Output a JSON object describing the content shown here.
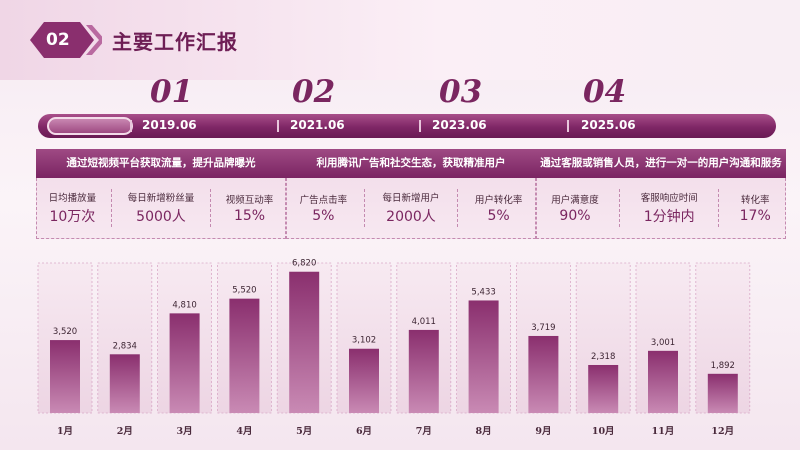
{
  "header": {
    "number": "02",
    "title": "主要工作汇报"
  },
  "steps": [
    {
      "num": "01",
      "date": "2019.06"
    },
    {
      "num": "02",
      "date": "2021.06"
    },
    {
      "num": "03",
      "date": "2023.06"
    },
    {
      "num": "04",
      "date": "2025.06"
    }
  ],
  "cards": [
    {
      "title": "通过短视频平台获取流量，提升品牌曝光",
      "metrics": [
        {
          "label": "日均播放量",
          "value": "10万次"
        },
        {
          "label": "每日新增粉丝量",
          "value": "5000人"
        },
        {
          "label": "视频互动率",
          "value": "15%"
        }
      ]
    },
    {
      "title": "利用腾讯广告和社交生态，获取精准用户",
      "metrics": [
        {
          "label": "广告点击率",
          "value": "5%"
        },
        {
          "label": "每日新增用户",
          "value": "2000人"
        },
        {
          "label": "用户转化率",
          "value": "5%"
        }
      ]
    },
    {
      "title": "通过客服或销售人员，进行一对一的用户沟通和服务",
      "metrics": [
        {
          "label": "用户满意度",
          "value": "90%"
        },
        {
          "label": "客服响应时间",
          "value": "1分钟内"
        },
        {
          "label": "转化率",
          "value": "17%"
        }
      ]
    }
  ],
  "colors": {
    "accent": "#7a2660",
    "bar_top": "#8a2f6e",
    "bar_bottom": "#c98ab4"
  },
  "chart_data": {
    "type": "bar",
    "categories": [
      "1月",
      "2月",
      "3月",
      "4月",
      "5月",
      "6月",
      "7月",
      "8月",
      "9月",
      "10月",
      "11月",
      "12月"
    ],
    "values": [
      3520,
      2834,
      4810,
      5520,
      6820,
      3102,
      4011,
      5433,
      3719,
      2318,
      3001,
      1892
    ],
    "value_labels": [
      "3,520",
      "2,834",
      "4,810",
      "5,520",
      "6,820",
      "3,102",
      "4,011",
      "5,433",
      "3,719",
      "2,318",
      "3,001",
      "1,892"
    ],
    "ylim": [
      0,
      7000
    ],
    "grid": false
  }
}
